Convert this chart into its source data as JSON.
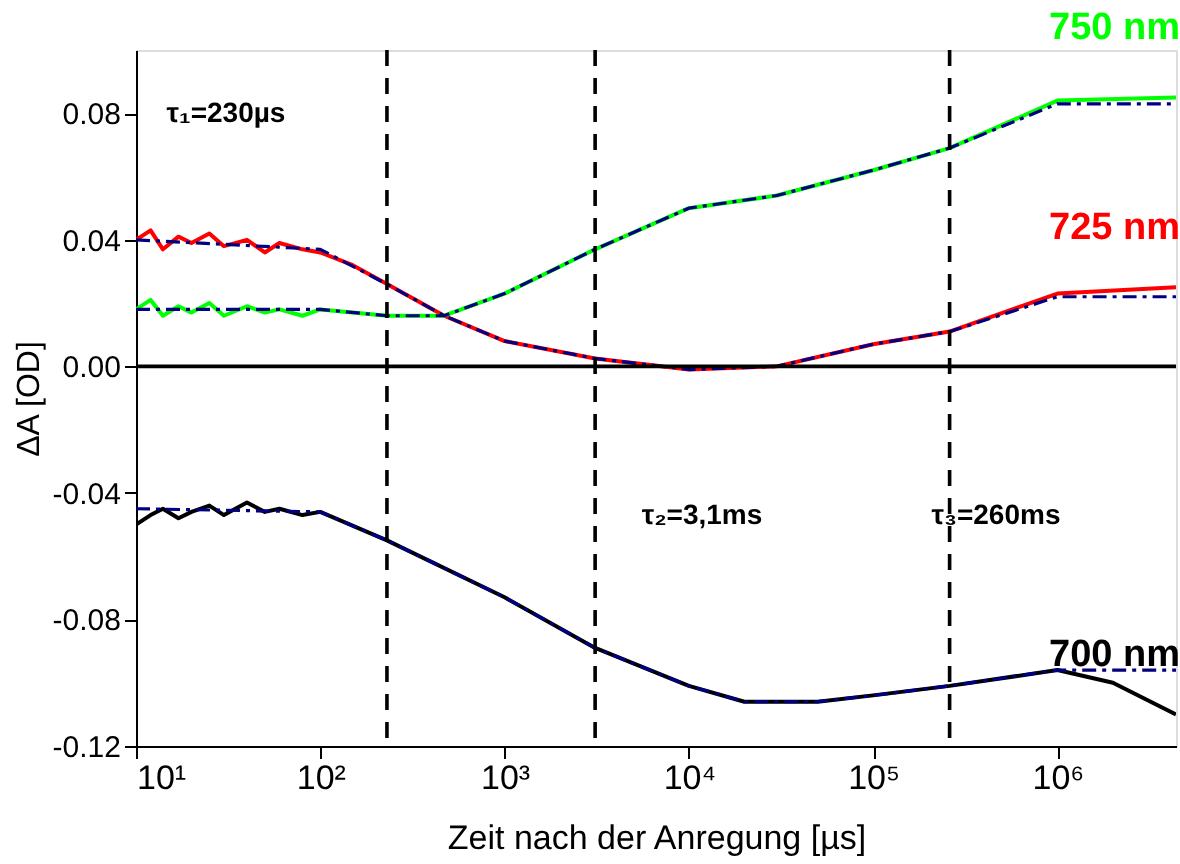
{
  "chart_data": {
    "type": "line",
    "xlabel": "Zeit nach der Anregung [µs]",
    "ylabel": "ΔA [OD]",
    "log": "x",
    "grid": false,
    "xlim": [
      10,
      4400000
    ],
    "xticks": [
      {
        "value": 10,
        "label": "10¹"
      },
      {
        "value": 100,
        "label": "10²"
      },
      {
        "value": 1000,
        "label": "10³"
      },
      {
        "value": 10000,
        "label": "10⁴"
      },
      {
        "value": 100000,
        "label": "10⁵"
      },
      {
        "value": 1000000,
        "label": "10⁶"
      }
    ],
    "ylim": [
      -0.12,
      0.1
    ],
    "yticks": [
      {
        "value": -0.12,
        "label": "-0.12"
      },
      {
        "value": -0.08,
        "label": "-0.08"
      },
      {
        "value": -0.04,
        "label": "-0.04"
      },
      {
        "value": 0,
        "label": "0.00"
      },
      {
        "value": 0.04,
        "label": "0.04"
      },
      {
        "value": 0.08,
        "label": "0.08"
      }
    ],
    "series": [
      {
        "name": "725 nm",
        "color": "#ff0000",
        "line_style": "solid",
        "x": [
          10,
          12,
          14,
          17,
          20,
          25,
          30,
          40,
          50,
          60,
          80,
          100,
          150,
          230,
          470,
          1000,
          3100,
          10000,
          30000,
          100000,
          260000,
          1000000,
          4400000
        ],
        "values": [
          0.04,
          0.043,
          0.037,
          0.041,
          0.039,
          0.042,
          0.038,
          0.04,
          0.036,
          0.039,
          0.037,
          0.036,
          0.032,
          0.026,
          0.016,
          0.008,
          0.0025,
          -0.001,
          0.0,
          0.007,
          0.011,
          0.023,
          0.025
        ]
      },
      {
        "name": "750 nm",
        "color": "#00ff00",
        "line_style": "solid",
        "x": [
          10,
          12,
          14,
          17,
          20,
          25,
          30,
          40,
          50,
          60,
          80,
          100,
          150,
          230,
          470,
          1000,
          3100,
          10000,
          30000,
          100000,
          260000,
          1000000,
          4400000
        ],
        "values": [
          0.018,
          0.021,
          0.016,
          0.019,
          0.017,
          0.02,
          0.016,
          0.019,
          0.017,
          0.018,
          0.016,
          0.018,
          0.017,
          0.016,
          0.016,
          0.023,
          0.037,
          0.05,
          0.054,
          0.062,
          0.069,
          0.084,
          0.085
        ]
      },
      {
        "name": "700 nm",
        "color": "#000000",
        "line_style": "solid",
        "x": [
          10,
          12,
          14,
          17,
          20,
          25,
          30,
          40,
          50,
          60,
          80,
          100,
          230,
          1000,
          3100,
          10000,
          20000,
          50000,
          100000,
          260000,
          1000000,
          2000000,
          4400000
        ],
        "values": [
          -0.05,
          -0.047,
          -0.045,
          -0.048,
          -0.046,
          -0.044,
          -0.047,
          -0.043,
          -0.046,
          -0.045,
          -0.047,
          -0.046,
          -0.055,
          -0.073,
          -0.089,
          -0.101,
          -0.106,
          -0.106,
          -0.104,
          -0.101,
          -0.096,
          -0.1,
          -0.11
        ]
      },
      {
        "color": "#000080",
        "line_style": "dashed",
        "x": [
          10,
          100,
          230,
          470,
          1000,
          3100,
          10000,
          30000,
          100000,
          260000,
          1000000,
          4400000
        ],
        "values": [
          0.04,
          0.037,
          0.026,
          0.016,
          0.008,
          0.0025,
          -0.001,
          0.0,
          0.007,
          0.011,
          0.022,
          0.022
        ]
      },
      {
        "color": "#000080",
        "line_style": "dashed",
        "x": [
          10,
          100,
          230,
          470,
          1000,
          3100,
          10000,
          30000,
          100000,
          260000,
          1000000,
          4400000
        ],
        "values": [
          0.018,
          0.018,
          0.016,
          0.016,
          0.023,
          0.037,
          0.05,
          0.054,
          0.062,
          0.069,
          0.083,
          0.083
        ]
      },
      {
        "color": "#000080",
        "line_style": "dashed",
        "x": [
          10,
          100,
          230,
          1000,
          3100,
          10000,
          20000,
          50000,
          100000,
          260000,
          1000000,
          4400000
        ],
        "values": [
          -0.045,
          -0.046,
          -0.055,
          -0.073,
          -0.089,
          -0.101,
          -0.106,
          -0.106,
          -0.104,
          -0.101,
          -0.096,
          -0.096
        ]
      }
    ],
    "ref_lines": [
      {
        "axis": "x",
        "value": 230,
        "line_style": "dashed",
        "color": "#000000"
      },
      {
        "axis": "x",
        "value": 3100,
        "line_style": "dashed",
        "color": "#000000"
      },
      {
        "axis": "x",
        "value": 260000,
        "line_style": "dashed",
        "color": "#000000"
      },
      {
        "axis": "y",
        "value": 0,
        "line_style": "solid",
        "color": "#000000"
      }
    ],
    "annotations": [
      "τ₁=230µs",
      "τ₂=3,1ms",
      "τ₃=260ms"
    ]
  }
}
